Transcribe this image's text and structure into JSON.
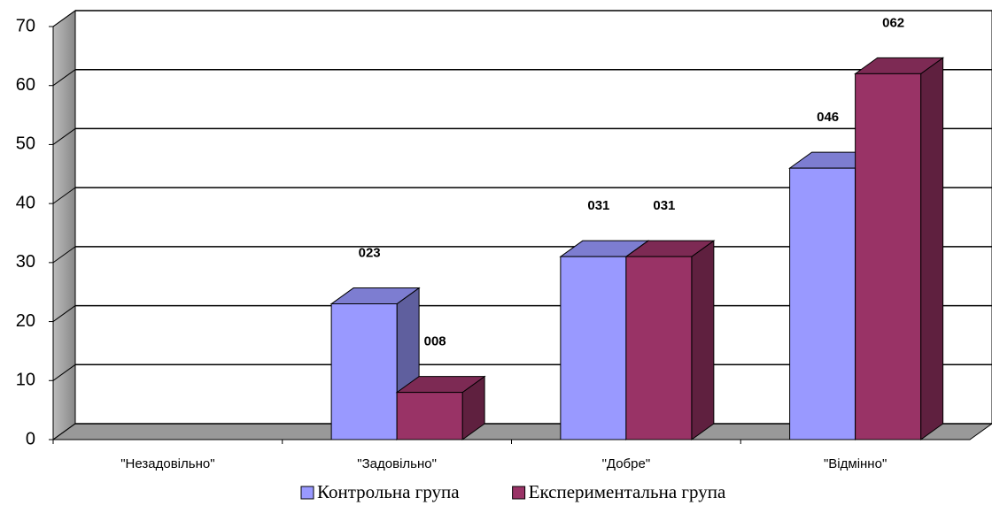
{
  "chart_data": {
    "type": "bar3d",
    "categories": [
      "\"Незадовільно\"",
      "\"Задовільно\"",
      "\"Добре\"",
      "\"Відмінно\""
    ],
    "series": [
      {
        "name": "Контрольна група",
        "color": "#9999ff",
        "values": [
          null,
          23,
          31,
          46
        ],
        "value_labels": [
          null,
          "023",
          "031",
          "046"
        ]
      },
      {
        "name": "Експериментальна група",
        "color": "#993366",
        "values": [
          null,
          8,
          31,
          62
        ],
        "value_labels": [
          null,
          "008",
          "031",
          "062"
        ]
      }
    ],
    "ylim": [
      0,
      70
    ],
    "yticks": [
      0,
      10,
      20,
      30,
      40,
      50,
      60,
      70
    ],
    "grid": true,
    "legend": "bottom"
  }
}
